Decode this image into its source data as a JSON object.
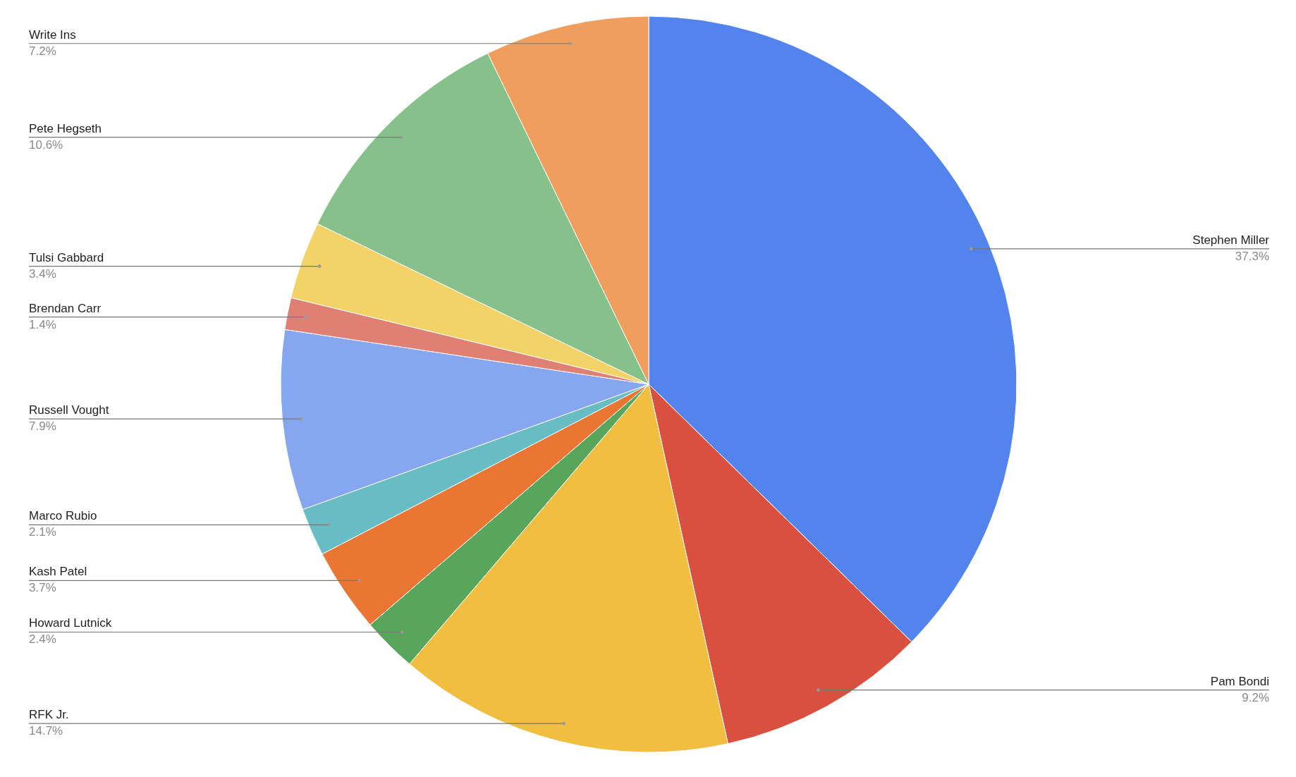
{
  "chart_data": {
    "type": "pie",
    "categories": [
      "Stephen Miller",
      "Pam Bondi",
      "RFK Jr.",
      "Howard Lutnick",
      "Kash Patel",
      "Marco Rubio",
      "Russell Vought",
      "Brendan Carr",
      "Tulsi Gabbard",
      "Pete Hegseth",
      "Write Ins"
    ],
    "values": [
      37.3,
      9.2,
      14.7,
      2.4,
      3.7,
      2.1,
      7.9,
      1.4,
      3.4,
      10.6,
      7.2
    ],
    "value_labels": [
      "37.3%",
      "9.2%",
      "14.7%",
      "2.4%",
      "3.7%",
      "2.1%",
      "7.9%",
      "1.4%",
      "3.4%",
      "10.6%",
      "7.2%"
    ],
    "colors": [
      "#5383ec",
      "#d95040",
      "#f1be40",
      "#58a65c",
      "#eb7532",
      "#68bcc3",
      "#86a6ef",
      "#e07f74",
      "#f3d267",
      "#86c08a",
      "#f09e5d"
    ]
  }
}
